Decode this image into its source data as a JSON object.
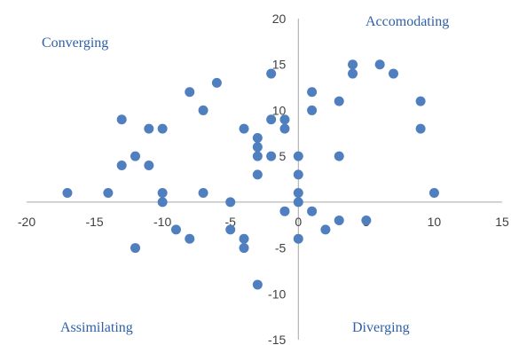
{
  "chart_data": {
    "type": "scatter",
    "title": "",
    "xlabel": "",
    "ylabel": "",
    "xlim": [
      -20,
      15
    ],
    "ylim": [
      -15,
      20
    ],
    "x_ticks": [
      -20,
      -15,
      -10,
      -5,
      0,
      5,
      10,
      15
    ],
    "y_ticks": [
      -15,
      -10,
      -5,
      0,
      5,
      10,
      15,
      20
    ],
    "grid": false,
    "legend": "none",
    "marker_color": "#4f7fbe",
    "quadrant_labels": {
      "top_left": "Converging",
      "top_right": "Accomodating",
      "bottom_left": "Assimilating",
      "bottom_right": "Diverging"
    },
    "series": [
      {
        "points": [
          [
            -17,
            1
          ],
          [
            -14,
            1
          ],
          [
            -13,
            9
          ],
          [
            -13,
            4
          ],
          [
            -12,
            5
          ],
          [
            -12,
            -5
          ],
          [
            -11,
            8
          ],
          [
            -11,
            4
          ],
          [
            -10,
            8
          ],
          [
            -10,
            1
          ],
          [
            -10,
            0
          ],
          [
            -9,
            -3
          ],
          [
            -8,
            12
          ],
          [
            -8,
            -4
          ],
          [
            -7,
            10
          ],
          [
            -7,
            1
          ],
          [
            -6,
            13
          ],
          [
            -5,
            0
          ],
          [
            -5,
            -3
          ],
          [
            -4,
            8
          ],
          [
            -4,
            -4
          ],
          [
            -4,
            -5
          ],
          [
            -3,
            7
          ],
          [
            -3,
            6
          ],
          [
            -3,
            5
          ],
          [
            -3,
            3
          ],
          [
            -3,
            -9
          ],
          [
            -2,
            14
          ],
          [
            -2,
            9
          ],
          [
            -2,
            5
          ],
          [
            -1,
            9
          ],
          [
            -1,
            8
          ],
          [
            -1,
            -1
          ],
          [
            0,
            5
          ],
          [
            0,
            3
          ],
          [
            0,
            1
          ],
          [
            0,
            0
          ],
          [
            0,
            -4
          ],
          [
            1,
            12
          ],
          [
            1,
            10
          ],
          [
            1,
            -1
          ],
          [
            2,
            -3
          ],
          [
            3,
            11
          ],
          [
            3,
            5
          ],
          [
            3,
            -2
          ],
          [
            4,
            15
          ],
          [
            4,
            14
          ],
          [
            5,
            -2
          ],
          [
            6,
            15
          ],
          [
            7,
            14
          ],
          [
            9,
            11
          ],
          [
            9,
            8
          ],
          [
            10,
            1
          ]
        ]
      }
    ]
  }
}
